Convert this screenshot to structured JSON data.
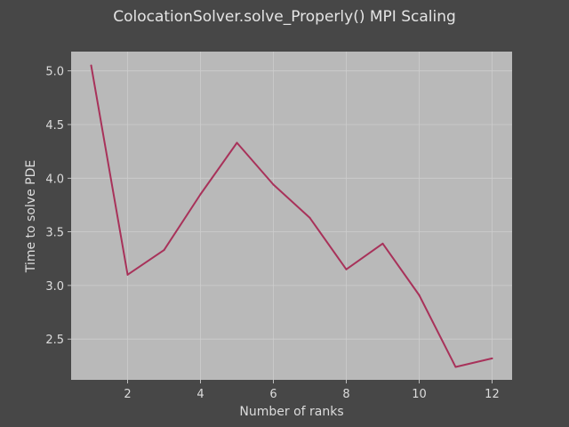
{
  "chart_data": {
    "type": "line",
    "title": "ColocationSolver.solve_Properly() MPI Scaling",
    "xlabel": "Number of ranks",
    "ylabel": "Time to solve PDE",
    "x": [
      1,
      2,
      3,
      4,
      5,
      6,
      7,
      8,
      9,
      10,
      11,
      12
    ],
    "series": [
      {
        "values": [
          5.05,
          3.1,
          3.33,
          3.85,
          4.33,
          3.94,
          3.63,
          3.15,
          3.39,
          2.91,
          2.24,
          2.32
        ],
        "color": "#a8325a"
      }
    ],
    "xlim": [
      0.45,
      12.55
    ],
    "ylim": [
      2.12,
      5.18
    ],
    "xticks": [
      2,
      4,
      6,
      8,
      10,
      12
    ],
    "xtick_labels": [
      "2",
      "4",
      "6",
      "8",
      "10",
      "12"
    ],
    "yticks": [
      2.5,
      3.0,
      3.5,
      4.0,
      4.5,
      5.0
    ],
    "ytick_labels": [
      "2.5",
      "3.0",
      "3.5",
      "4.0",
      "4.5",
      "5.0"
    ],
    "grid": true,
    "colors": {
      "figure_background": "#474747",
      "plot_background": "#b9b9b9",
      "grid": "#cdcdcd",
      "text": "#dcdcdc"
    }
  }
}
